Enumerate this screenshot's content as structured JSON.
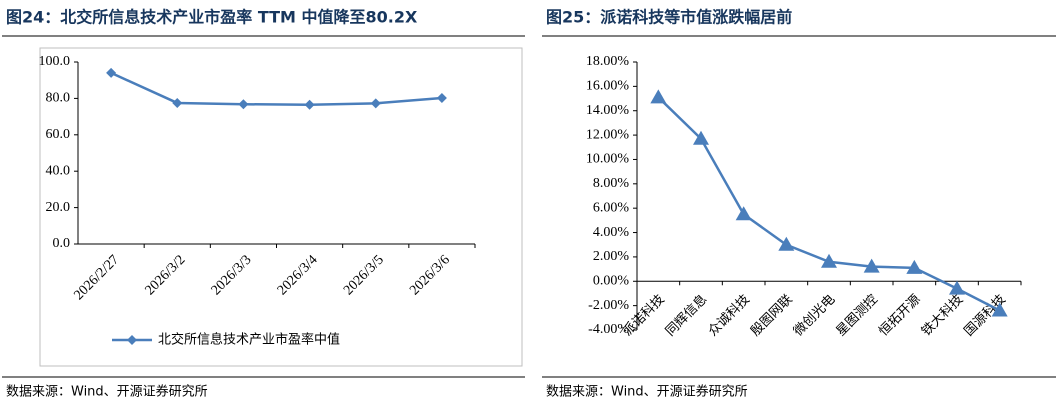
{
  "chart_data": [
    {
      "type": "line",
      "title": "图24：北交所信息技术产业市盈率 TTM 中值降至80.2X",
      "categories": [
        "2026/2/27",
        "2026/3/2",
        "2026/3/3",
        "2026/3/4",
        "2026/3/5",
        "2026/3/6"
      ],
      "series": [
        {
          "name": "北交所信息技术产业市盈率中值",
          "color": "#4a7ebb",
          "values": [
            94.0,
            77.5,
            76.8,
            76.5,
            77.3,
            80.2
          ]
        }
      ],
      "marker": "diamond",
      "ylim": [
        0,
        100
      ],
      "yticks": [
        {
          "value": 0,
          "label": "0.0"
        },
        {
          "value": 20,
          "label": "20.0"
        },
        {
          "value": 40,
          "label": "40.0"
        },
        {
          "value": 60,
          "label": "60.0"
        },
        {
          "value": 80,
          "label": "80.0"
        },
        {
          "value": 100,
          "label": "100.0"
        }
      ],
      "source": "数据来源：Wind、开源证券研究所"
    },
    {
      "type": "line",
      "title": "图25：派诺科技等市值涨跌幅居前",
      "categories": [
        "派诺科技",
        "同辉信息",
        "众诚科技",
        "殷图网联",
        "微创光电",
        "星图测控",
        "恒拓开源",
        "铁大科技",
        "国源科技"
      ],
      "series": [
        {
          "color": "#4a7ebb",
          "values": [
            15.1,
            11.7,
            5.5,
            3.0,
            1.6,
            1.2,
            1.1,
            -0.6,
            -2.4
          ]
        }
      ],
      "marker": "triangle",
      "ylim": [
        -4,
        18
      ],
      "yticks": [
        {
          "value": -4,
          "label": "-4.00%"
        },
        {
          "value": -2,
          "label": "-2.00%"
        },
        {
          "value": 0,
          "label": "0.00%"
        },
        {
          "value": 2,
          "label": "2.00%"
        },
        {
          "value": 4,
          "label": "4.00%"
        },
        {
          "value": 6,
          "label": "6.00%"
        },
        {
          "value": 8,
          "label": "8.00%"
        },
        {
          "value": 10,
          "label": "10.00%"
        },
        {
          "value": 12,
          "label": "12.00%"
        },
        {
          "value": 14,
          "label": "14.00%"
        },
        {
          "value": 16,
          "label": "16.00%"
        },
        {
          "value": 18,
          "label": "18.00%"
        }
      ],
      "source": "数据来源：Wind、开源证券研究所"
    }
  ]
}
